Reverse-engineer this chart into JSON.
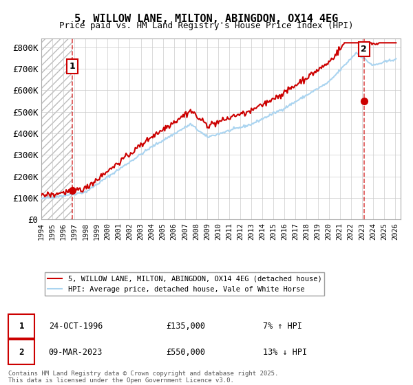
{
  "title": "5, WILLOW LANE, MILTON, ABINGDON, OX14 4EG",
  "subtitle": "Price paid vs. HM Land Registry's House Price Index (HPI)",
  "ylabel_ticks": [
    "£0",
    "£100K",
    "£200K",
    "£300K",
    "£400K",
    "£500K",
    "£600K",
    "£700K",
    "£800K"
  ],
  "ytick_values": [
    0,
    100000,
    200000,
    300000,
    400000,
    500000,
    600000,
    700000,
    800000
  ],
  "ylim": [
    0,
    840000
  ],
  "xlim_start": 1994.0,
  "xlim_end": 2026.5,
  "hpi_color": "#aad4f0",
  "price_color": "#cc0000",
  "marker1_date": 1996.81,
  "marker1_price": 135000,
  "marker1_label": "24-OCT-1996",
  "marker1_pct": "7% ↑ HPI",
  "marker2_date": 2023.18,
  "marker2_price": 550000,
  "marker2_label": "09-MAR-2023",
  "marker2_pct": "13% ↓ HPI",
  "legend_line1": "5, WILLOW LANE, MILTON, ABINGDON, OX14 4EG (detached house)",
  "legend_line2": "HPI: Average price, detached house, Vale of White Horse",
  "footer": "Contains HM Land Registry data © Crown copyright and database right 2025.\nThis data is licensed under the Open Government Licence v3.0.",
  "bg_color": "#ffffff",
  "grid_color": "#cccccc",
  "annotation_box_color": "#cc0000"
}
